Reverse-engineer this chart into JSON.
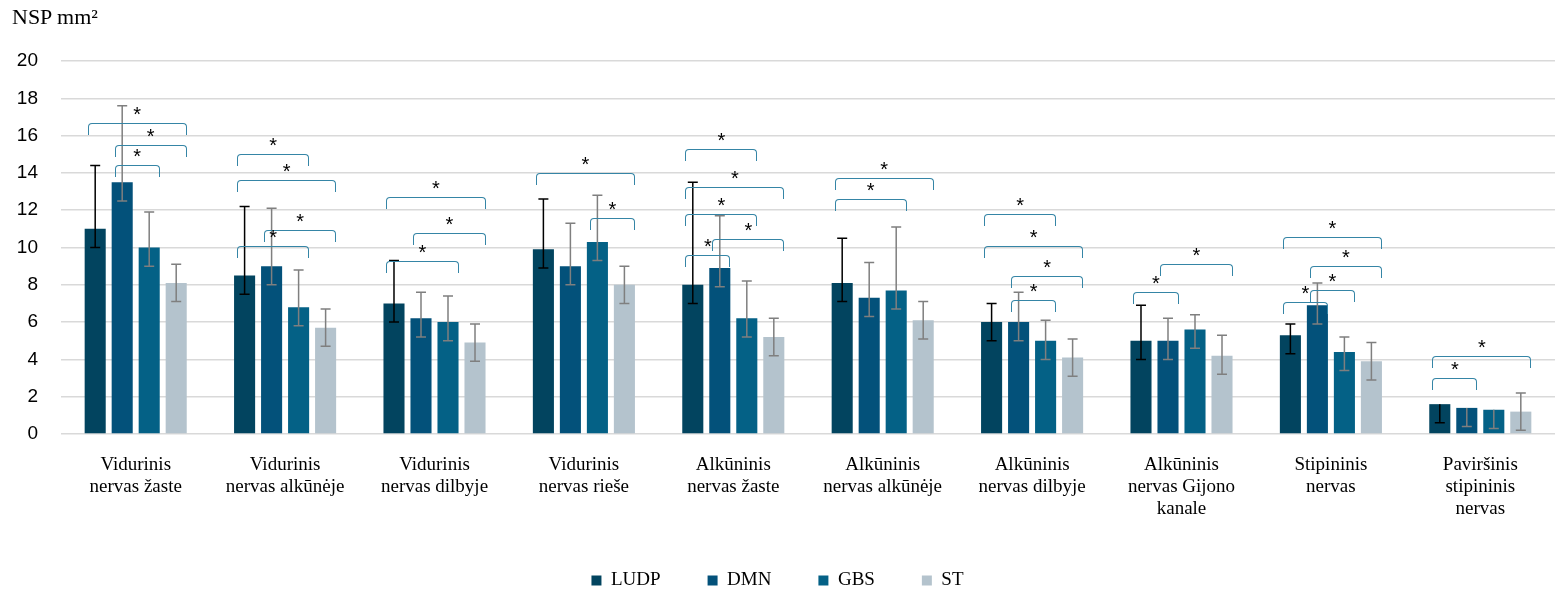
{
  "chart_data": {
    "type": "bar",
    "ylabel": "NSP mm²",
    "categories": [
      "Vidurinis nervas žaste",
      "Vidurinis nervas alkūnėje",
      "Vidurinis nervas dilbyje",
      "Vidurinis nervas rieše",
      "Alkūninis nervas žaste",
      "Alkūninis nervas alkūnėje",
      "Alkūninis nervas dilbyje",
      "Alkūninis nervas Gijono kanale",
      "Stipininis nervas",
      "Paviršinis stipininis nervas"
    ],
    "series": [
      {
        "name": "LUDP",
        "color": "#02445f",
        "values": [
          11,
          8.5,
          7,
          9.9,
          8,
          8.1,
          6,
          5,
          5.3,
          1.6
        ],
        "errors": [
          [
            10,
            14.4
          ],
          [
            7.5,
            12.2
          ],
          [
            6,
            9.3
          ],
          [
            8.9,
            12.6
          ],
          [
            7,
            13.5
          ],
          [
            7.1,
            10.5
          ],
          [
            5,
            7
          ],
          [
            4,
            6.9
          ],
          [
            4.3,
            5.9
          ],
          [
            0.6,
            1.6
          ]
        ]
      },
      {
        "name": "DMN",
        "color": "#03517a",
        "values": [
          13.5,
          9,
          6.2,
          9,
          8.9,
          7.3,
          6,
          5,
          6.9,
          1.4
        ],
        "errors": [
          [
            12.5,
            17.6
          ],
          [
            8,
            12.1
          ],
          [
            5.2,
            7.6
          ],
          [
            8,
            11.3
          ],
          [
            7.9,
            11.7
          ],
          [
            6.3,
            9.2
          ],
          [
            5,
            7.6
          ],
          [
            4,
            6.2
          ],
          [
            5.9,
            8.1
          ],
          [
            0.4,
            1.4
          ]
        ]
      },
      {
        "name": "GBS",
        "color": "#046186",
        "values": [
          10,
          6.8,
          6,
          10.3,
          6.2,
          7.7,
          5,
          5.6,
          4.4,
          1.3
        ],
        "errors": [
          [
            9,
            11.9
          ],
          [
            5.8,
            8.8
          ],
          [
            5,
            7.4
          ],
          [
            9.3,
            12.8
          ],
          [
            5.2,
            8.2
          ],
          [
            6.7,
            11.1
          ],
          [
            4,
            6.1
          ],
          [
            4.6,
            6.4
          ],
          [
            3.4,
            5.2
          ],
          [
            0.3,
            1.3
          ]
        ]
      },
      {
        "name": "ST",
        "color": "#b4c3cd",
        "values": [
          8.1,
          5.7,
          4.9,
          8,
          5.2,
          6.1,
          4.1,
          4.2,
          3.9,
          1.2
        ],
        "errors": [
          [
            7.1,
            9.1
          ],
          [
            4.7,
            6.7
          ],
          [
            3.9,
            5.9
          ],
          [
            7,
            9
          ],
          [
            4.2,
            6.2
          ],
          [
            5.1,
            7.1
          ],
          [
            3.1,
            5.1
          ],
          [
            3.2,
            5.3
          ],
          [
            2.9,
            4.9
          ],
          [
            0.2,
            2.2
          ]
        ]
      }
    ],
    "ylim": [
      0,
      20
    ],
    "yticks": [
      0,
      2,
      4,
      6,
      8,
      10,
      12,
      14,
      16,
      18,
      20
    ],
    "grid": "y",
    "legend": "bottom",
    "annotations": [
      "*",
      "*",
      "*",
      "*",
      "*",
      "*",
      "*",
      "*",
      "*",
      "*",
      "*",
      "*",
      "*",
      "*",
      "*",
      "*",
      "*",
      "*",
      "*",
      "*",
      "*",
      "*",
      "*",
      "*",
      "*",
      "*",
      "*",
      "*",
      "*",
      "*",
      "*"
    ]
  }
}
